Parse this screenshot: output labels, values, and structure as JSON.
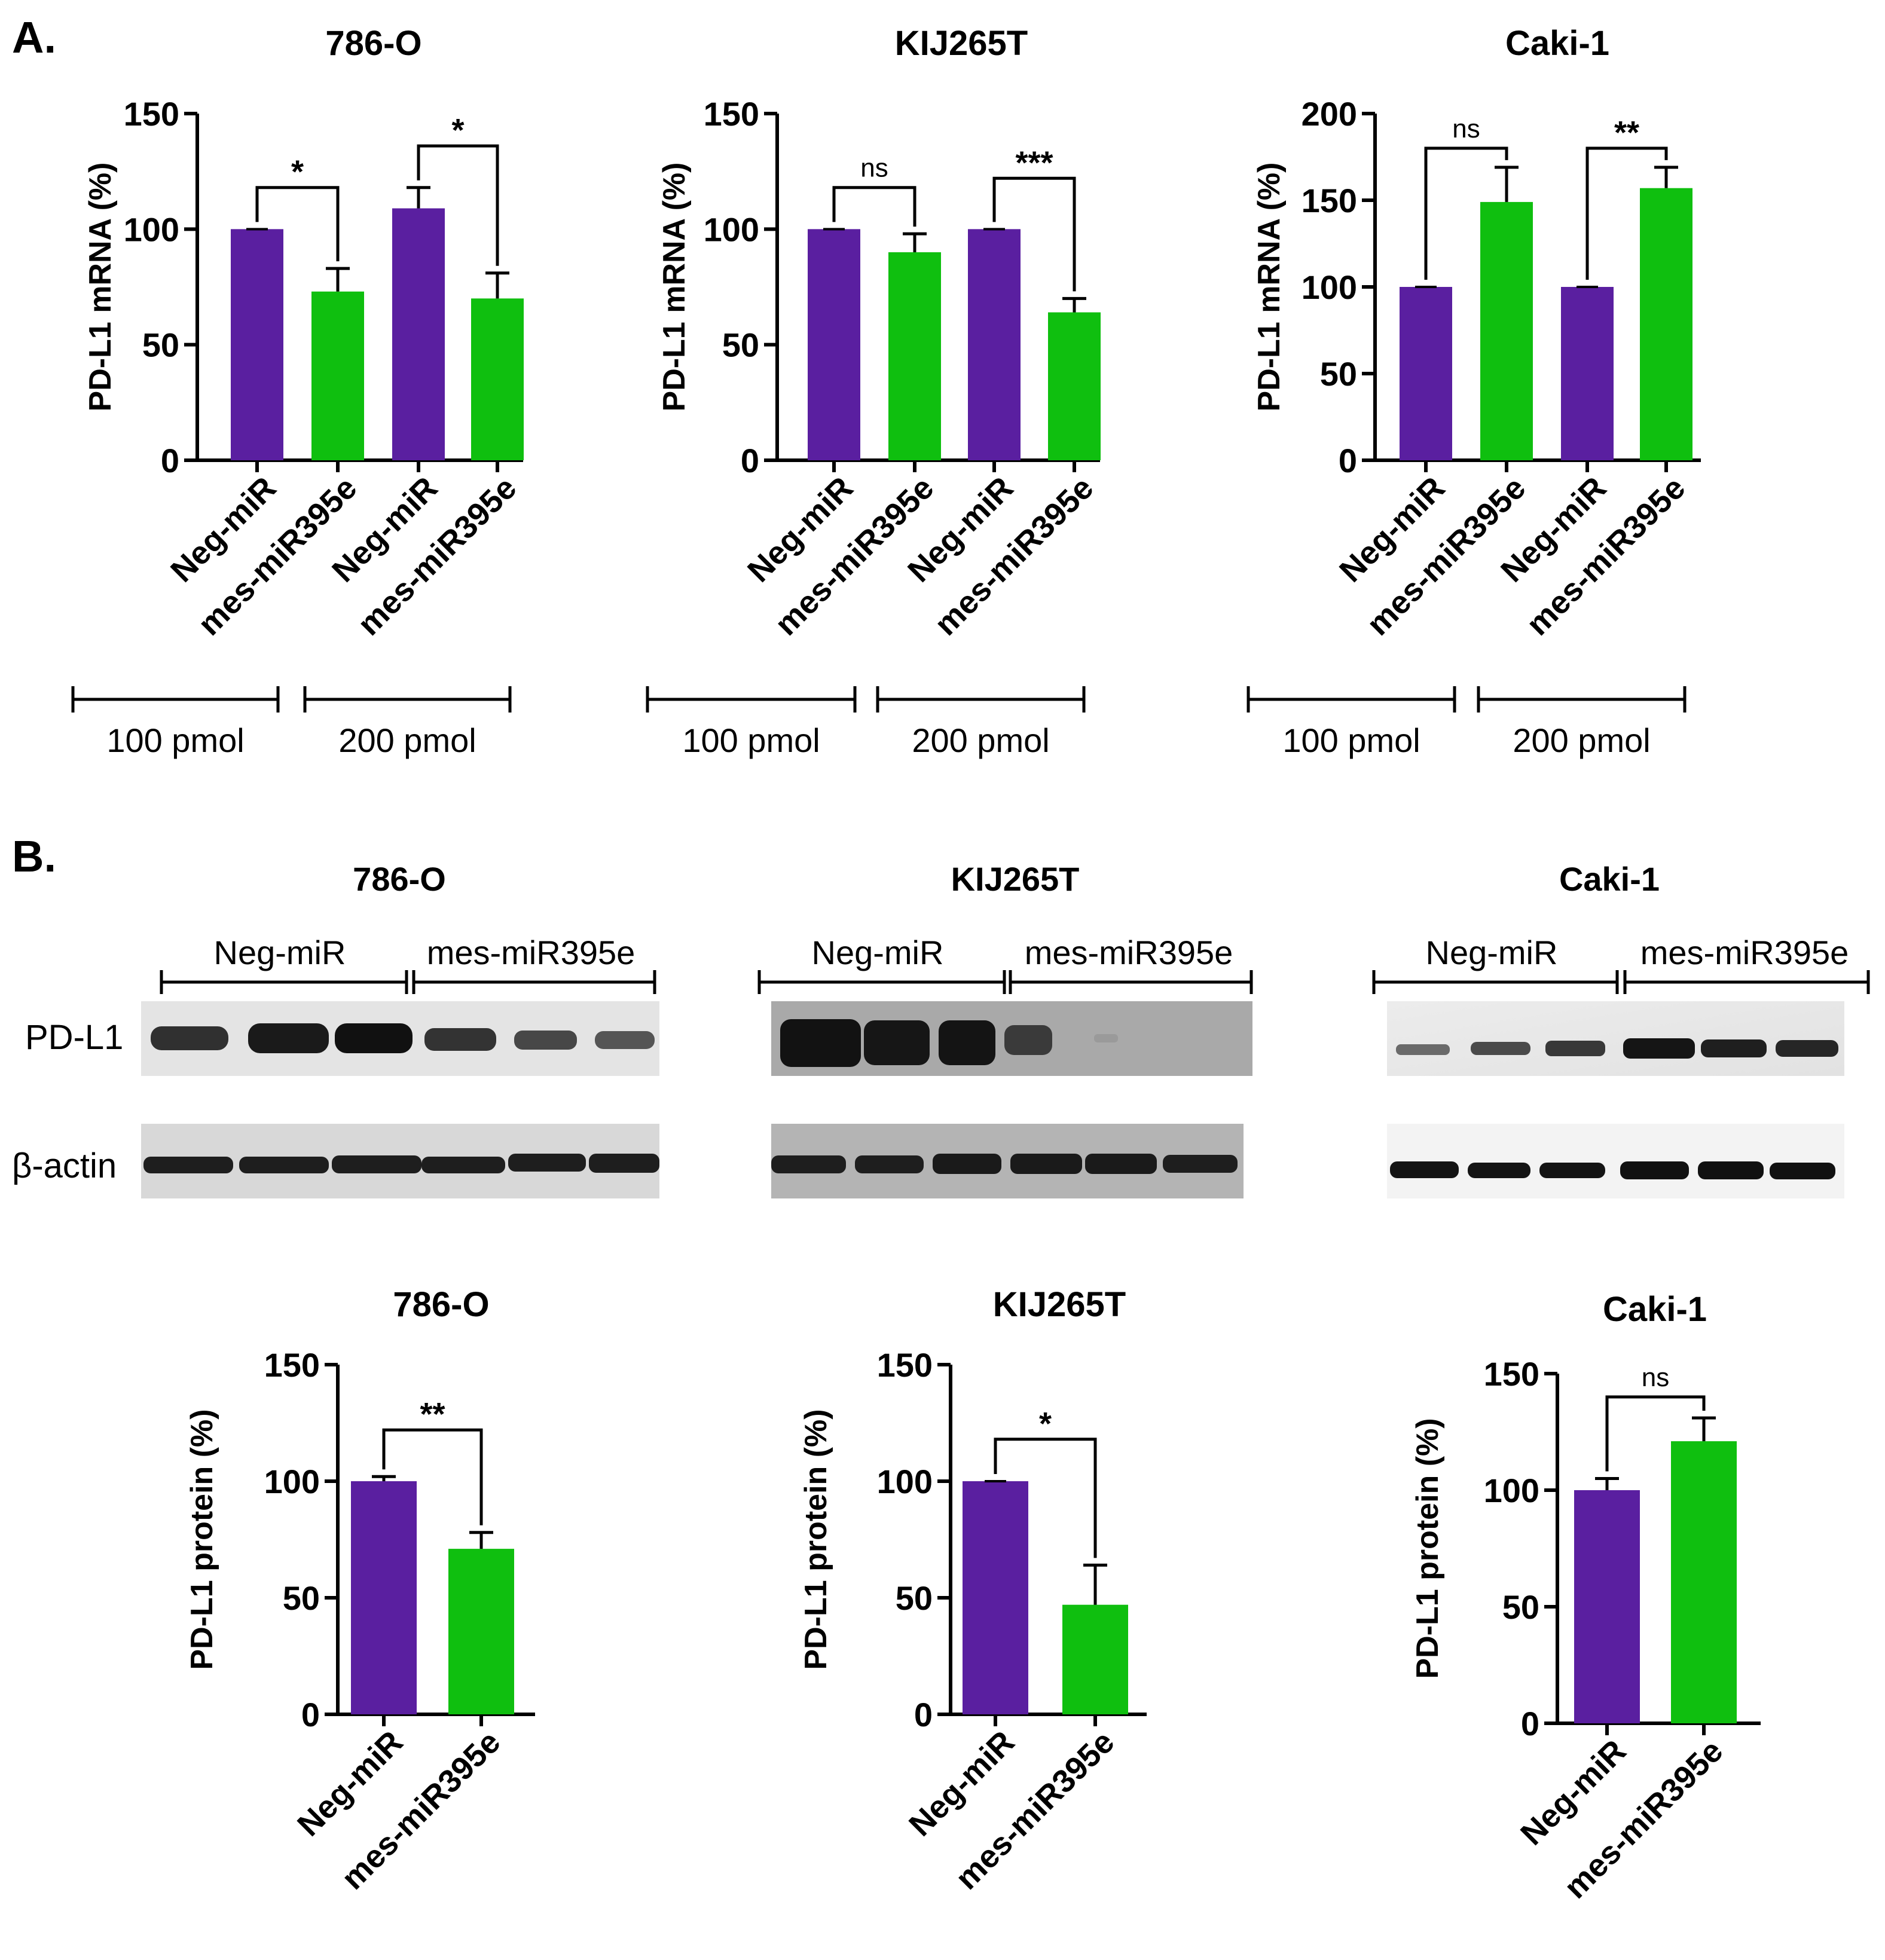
{
  "panels": {
    "a": "A.",
    "b": "B."
  },
  "colors": {
    "neg": "#5a1fa0",
    "mes": "#0fbf0f",
    "axis": "#000000"
  },
  "chart_data": [
    {
      "type": "bar",
      "title": "786-O",
      "ylabel": "PD-L1 mRNA (%)",
      "ylim": [
        0,
        150
      ],
      "yticks": [
        0,
        50,
        100,
        150
      ],
      "categories": [
        "Neg-miR",
        "mes-miR395e",
        "Neg-miR",
        "mes-miR395e"
      ],
      "values": [
        100,
        73,
        109,
        70
      ],
      "errors": [
        0,
        10,
        9,
        11
      ],
      "comparisons": [
        {
          "from": 0,
          "to": 1,
          "label": "*",
          "y": 118
        },
        {
          "from": 2,
          "to": 3,
          "label": "*",
          "y": 136
        }
      ],
      "groups": [
        {
          "label": "100 pmol",
          "from": 0,
          "to": 1
        },
        {
          "label": "200 pmol",
          "from": 2,
          "to": 3
        }
      ]
    },
    {
      "type": "bar",
      "title": "KIJ265T",
      "ylabel": "PD-L1 mRNA (%)",
      "ylim": [
        0,
        150
      ],
      "yticks": [
        0,
        50,
        100,
        150
      ],
      "categories": [
        "Neg-miR",
        "mes-miR395e",
        "Neg-miR",
        "mes-miR395e"
      ],
      "values": [
        100,
        90,
        100,
        64
      ],
      "errors": [
        0,
        8,
        0,
        6
      ],
      "comparisons": [
        {
          "from": 0,
          "to": 1,
          "label": "ns",
          "y": 118
        },
        {
          "from": 2,
          "to": 3,
          "label": "***",
          "y": 122
        }
      ],
      "groups": [
        {
          "label": "100 pmol",
          "from": 0,
          "to": 1
        },
        {
          "label": "200 pmol",
          "from": 2,
          "to": 3
        }
      ]
    },
    {
      "type": "bar",
      "title": "Caki-1",
      "ylabel": "PD-L1 mRNA (%)",
      "ylim": [
        0,
        200
      ],
      "yticks": [
        0,
        50,
        100,
        150,
        200
      ],
      "categories": [
        "Neg-miR",
        "mes-miR395e",
        "Neg-miR",
        "mes-miR395e"
      ],
      "values": [
        100,
        149,
        100,
        157
      ],
      "errors": [
        0,
        20,
        0,
        12
      ],
      "comparisons": [
        {
          "from": 0,
          "to": 1,
          "label": "ns",
          "y": 180
        },
        {
          "from": 2,
          "to": 3,
          "label": "**",
          "y": 180
        }
      ],
      "groups": [
        {
          "label": "100 pmol",
          "from": 0,
          "to": 1
        },
        {
          "label": "200 pmol",
          "from": 2,
          "to": 3
        }
      ]
    },
    {
      "type": "bar",
      "title": "786-O",
      "ylabel": "PD-L1 protein (%)",
      "ylim": [
        0,
        150
      ],
      "yticks": [
        0,
        50,
        100,
        150
      ],
      "categories": [
        "Neg-miR",
        "mes-miR395e"
      ],
      "values": [
        100,
        71
      ],
      "errors": [
        2,
        7
      ],
      "comparisons": [
        {
          "from": 0,
          "to": 1,
          "label": "**",
          "y": 122
        }
      ]
    },
    {
      "type": "bar",
      "title": "KIJ265T",
      "ylabel": "PD-L1 protein (%)",
      "ylim": [
        0,
        150
      ],
      "yticks": [
        0,
        50,
        100,
        150
      ],
      "categories": [
        "Neg-miR",
        "mes-miR395e"
      ],
      "values": [
        100,
        47
      ],
      "errors": [
        0,
        17
      ],
      "comparisons": [
        {
          "from": 0,
          "to": 1,
          "label": "*",
          "y": 118
        }
      ]
    },
    {
      "type": "bar",
      "title": "Caki-1",
      "ylabel": "PD-L1 protein (%)",
      "ylim": [
        0,
        150
      ],
      "yticks": [
        0,
        50,
        100,
        150
      ],
      "categories": [
        "Neg-miR",
        "mes-miR395e"
      ],
      "values": [
        100,
        121
      ],
      "errors": [
        5,
        10
      ],
      "comparisons": [
        {
          "from": 0,
          "to": 1,
          "label": "ns",
          "y": 140
        }
      ]
    }
  ],
  "blots": [
    {
      "title": "786-O",
      "group_labels": [
        "Neg-miR",
        "mes-miR395e"
      ],
      "rows": [
        "PD-L1",
        "β-actin"
      ]
    },
    {
      "title": "KIJ265T",
      "group_labels": [
        "Neg-miR",
        "mes-miR395e"
      ]
    },
    {
      "title": "Caki-1",
      "group_labels": [
        "Neg-miR",
        "mes-miR395e"
      ]
    }
  ]
}
